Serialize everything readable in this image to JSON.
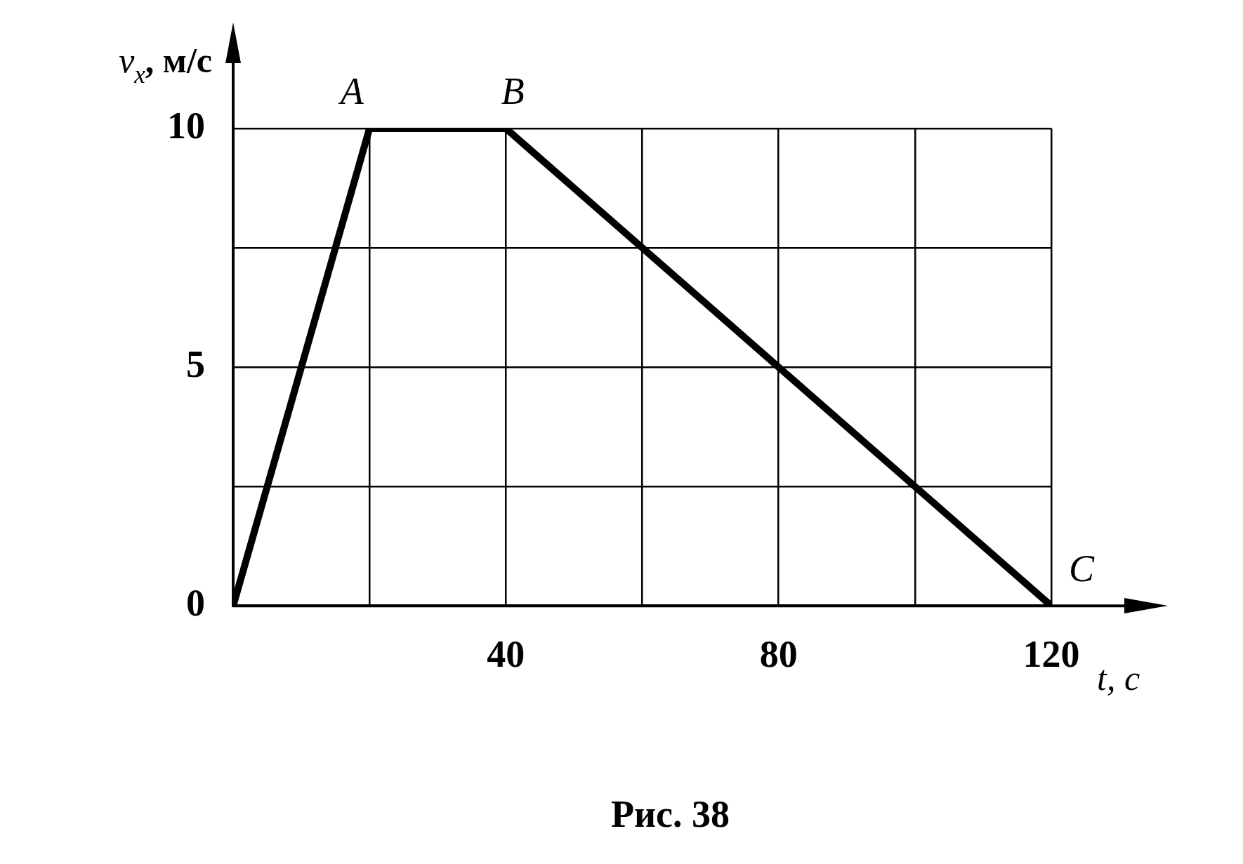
{
  "chart_data": {
    "type": "line",
    "xlabel": "t, с",
    "ylabel": "v$_{x}$, м/с",
    "x": [
      0,
      20,
      40,
      120
    ],
    "series": [
      {
        "color": "#000000",
        "values": [
          0,
          10,
          10,
          0
        ]
      }
    ],
    "xlim": [
      0,
      120
    ],
    "ylim": [
      0,
      10
    ],
    "xticks": [
      {
        "value": 0,
        "label": null
      },
      {
        "value": 20,
        "label": null
      },
      40,
      {
        "value": 60,
        "label": null
      },
      80,
      {
        "value": 100,
        "label": null
      },
      120
    ],
    "yticks": [
      0,
      {
        "value": 2.5,
        "label": null
      },
      5,
      {
        "value": 7.5,
        "label": null
      },
      10
    ],
    "grid": true,
    "marker": "none",
    "line_style": "solid",
    "annotations": [
      {
        "text": "A",
        "x": 20,
        "y": 10
      },
      {
        "text": "B",
        "x": 40,
        "y": 10
      },
      {
        "text": "C",
        "x": 120,
        "y": 0
      },
      "Рис. 38"
    ]
  }
}
